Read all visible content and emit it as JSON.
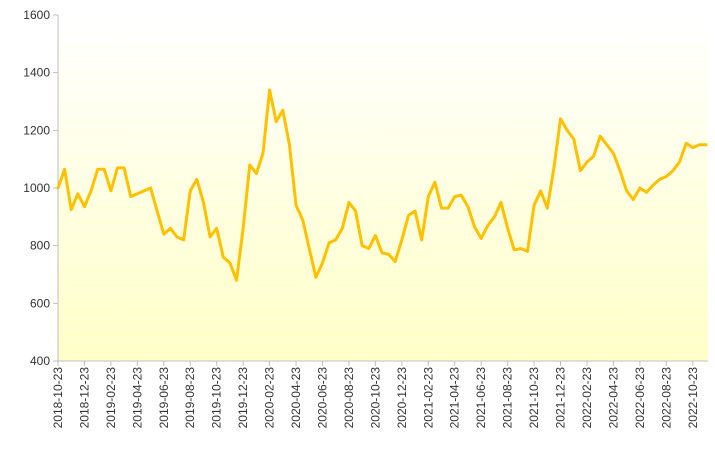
{
  "chart_data": {
    "type": "line",
    "categories": [
      "2018-10-23",
      null,
      null,
      null,
      "2018-12-23",
      null,
      null,
      null,
      "2019-02-23",
      null,
      null,
      null,
      "2019-04-23",
      null,
      null,
      null,
      "2019-06-23",
      null,
      null,
      null,
      "2019-08-23",
      null,
      null,
      null,
      "2019-10-23",
      null,
      null,
      null,
      "2019-12-23",
      null,
      null,
      null,
      "2020-02-23",
      null,
      null,
      null,
      "2020-04-23",
      null,
      null,
      null,
      "2020-06-23",
      null,
      null,
      null,
      "2020-08-23",
      null,
      null,
      null,
      "2020-10-23",
      null,
      null,
      null,
      "2020-12-23",
      null,
      null,
      null,
      "2021-02-23",
      null,
      null,
      null,
      "2021-04-23",
      null,
      null,
      null,
      "2021-06-23",
      null,
      null,
      null,
      "2021-08-23",
      null,
      null,
      null,
      "2021-10-23",
      null,
      null,
      null,
      "2021-12-23",
      null,
      null,
      null,
      "2022-02-23",
      null,
      null,
      null,
      "2022-04-23",
      null,
      null,
      null,
      "2022-06-23",
      null,
      null,
      null,
      "2022-08-23",
      null,
      null,
      null,
      "2022-10-23",
      null,
      null
    ],
    "values": [
      1000,
      1065,
      925,
      980,
      935,
      990,
      1065,
      1065,
      990,
      1070,
      1070,
      970,
      980,
      990,
      1000,
      920,
      840,
      860,
      830,
      820,
      990,
      1030,
      950,
      830,
      860,
      760,
      740,
      680,
      860,
      1080,
      1050,
      1120,
      1340,
      1230,
      1270,
      1150,
      940,
      890,
      790,
      690,
      740,
      810,
      820,
      860,
      950,
      920,
      800,
      790,
      835,
      775,
      770,
      745,
      820,
      905,
      920,
      820,
      970,
      1020,
      930,
      930,
      970,
      975,
      935,
      865,
      825,
      870,
      900,
      950,
      860,
      785,
      790,
      780,
      940,
      990,
      930,
      1070,
      1240,
      1200,
      1170,
      1060,
      1090,
      1110,
      1180,
      1150,
      1120,
      1060,
      990,
      960,
      1000,
      985,
      1010,
      1030,
      1040,
      1060,
      1090,
      1155,
      1140,
      1150,
      1150
    ],
    "color": "#ffc000",
    "ylim": [
      400,
      1600
    ],
    "yticks": [
      400,
      600,
      800,
      1000,
      1200,
      1400,
      1600
    ],
    "grid": false
  }
}
